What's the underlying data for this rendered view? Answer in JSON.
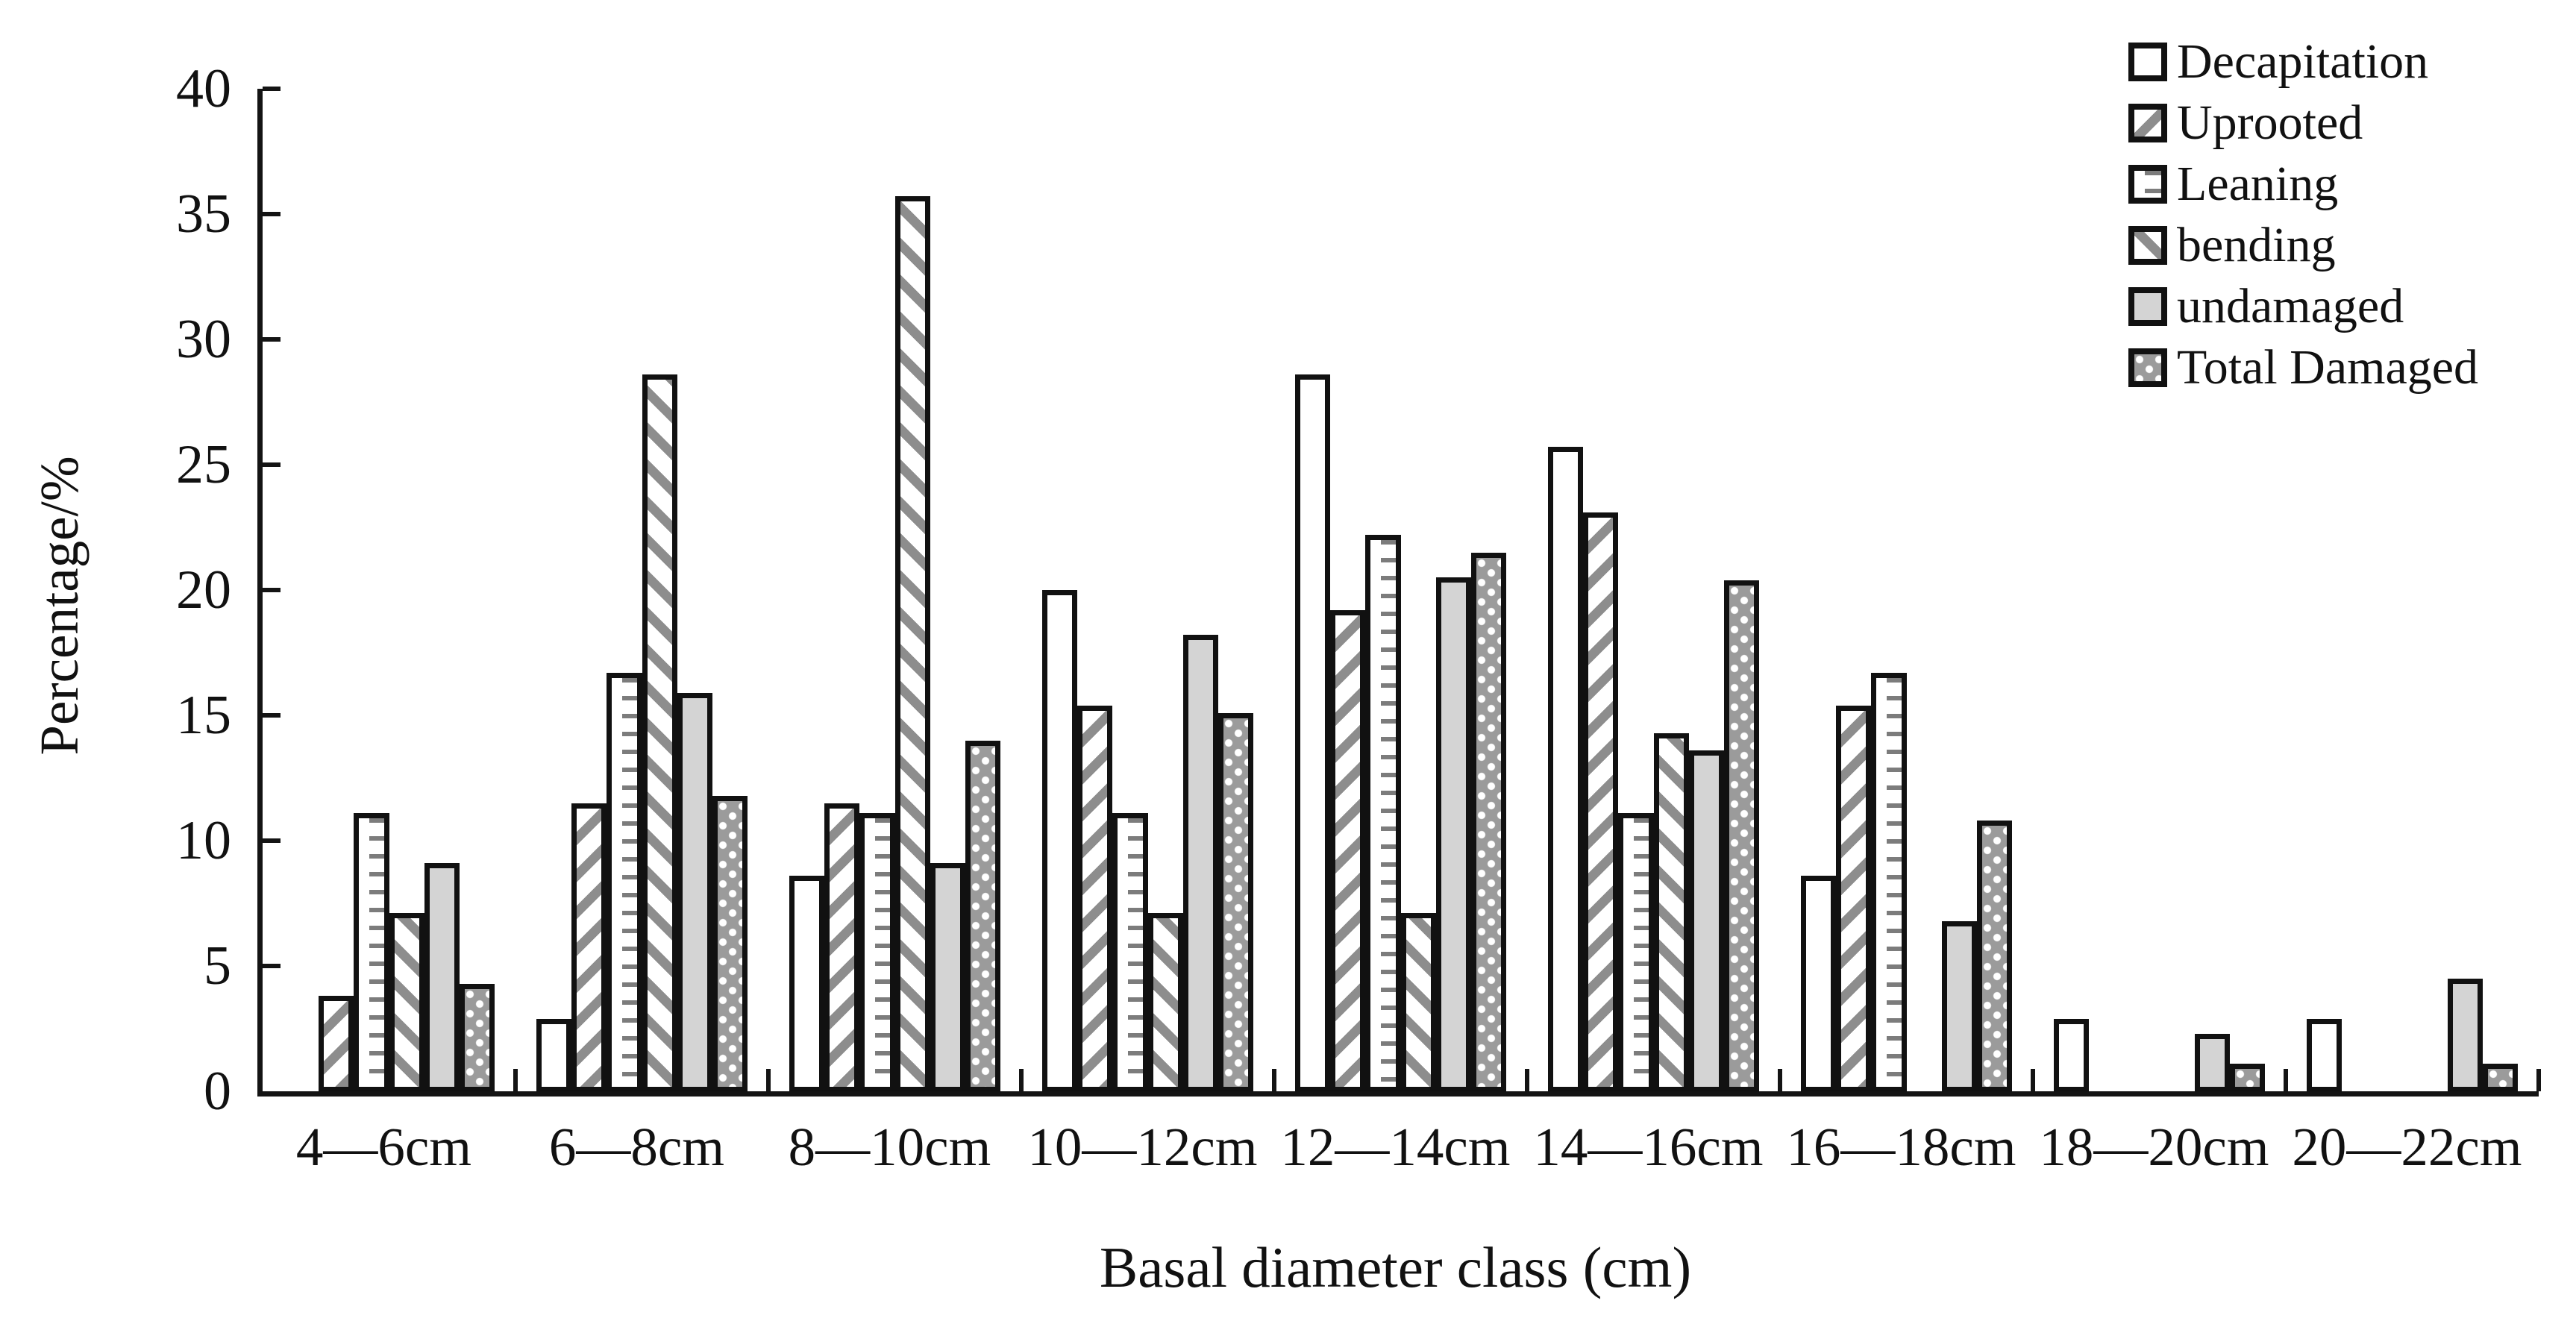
{
  "chart_data": {
    "type": "bar",
    "title": "",
    "xlabel": "Basal diameter class (cm)",
    "ylabel": "Percentage/%",
    "ylim": [
      0,
      40
    ],
    "ytick_step": 5,
    "y_ticks": [
      "0",
      "5",
      "10",
      "15",
      "20",
      "25",
      "30",
      "35",
      "40"
    ],
    "grid": false,
    "legend_position": "top-right",
    "categories": [
      "4—6cm",
      "6—8cm",
      "8—10cm",
      "10—12cm",
      "12—14cm",
      "14—16cm",
      "16—18cm",
      "18—20cm",
      "20—22cm"
    ],
    "series": [
      {
        "name": "Decapitation",
        "pattern": "white",
        "values": [
          0,
          2.9,
          8.6,
          20.0,
          28.6,
          25.7,
          8.6,
          2.9,
          2.9
        ]
      },
      {
        "name": "Uprooted",
        "pattern": "diag-up",
        "values": [
          3.8,
          11.5,
          11.5,
          15.4,
          19.2,
          23.1,
          15.4,
          0,
          0
        ]
      },
      {
        "name": "Leaning",
        "pattern": "h-dash",
        "values": [
          11.1,
          16.7,
          11.1,
          11.1,
          22.2,
          11.1,
          16.7,
          0,
          0
        ]
      },
      {
        "name": "bending",
        "pattern": "diag-down",
        "values": [
          7.1,
          28.6,
          35.7,
          7.1,
          7.1,
          14.3,
          0,
          0,
          0
        ]
      },
      {
        "name": "undamaged",
        "pattern": "gray",
        "values": [
          9.1,
          15.9,
          9.1,
          18.2,
          20.5,
          13.6,
          6.8,
          2.3,
          4.5
        ]
      },
      {
        "name": "Total Damaged",
        "pattern": "dots",
        "values": [
          4.3,
          11.8,
          14.0,
          15.1,
          21.5,
          20.4,
          10.8,
          1.1,
          1.1
        ]
      }
    ],
    "colors": {
      "ink": "#111111",
      "stripe_gray": "#8d8d8d",
      "dash_gray": "#7c7c7c",
      "undamaged_fill": "#d4d4d4",
      "dots_fill": "#9b9b9b",
      "background": "#ffffff"
    }
  }
}
